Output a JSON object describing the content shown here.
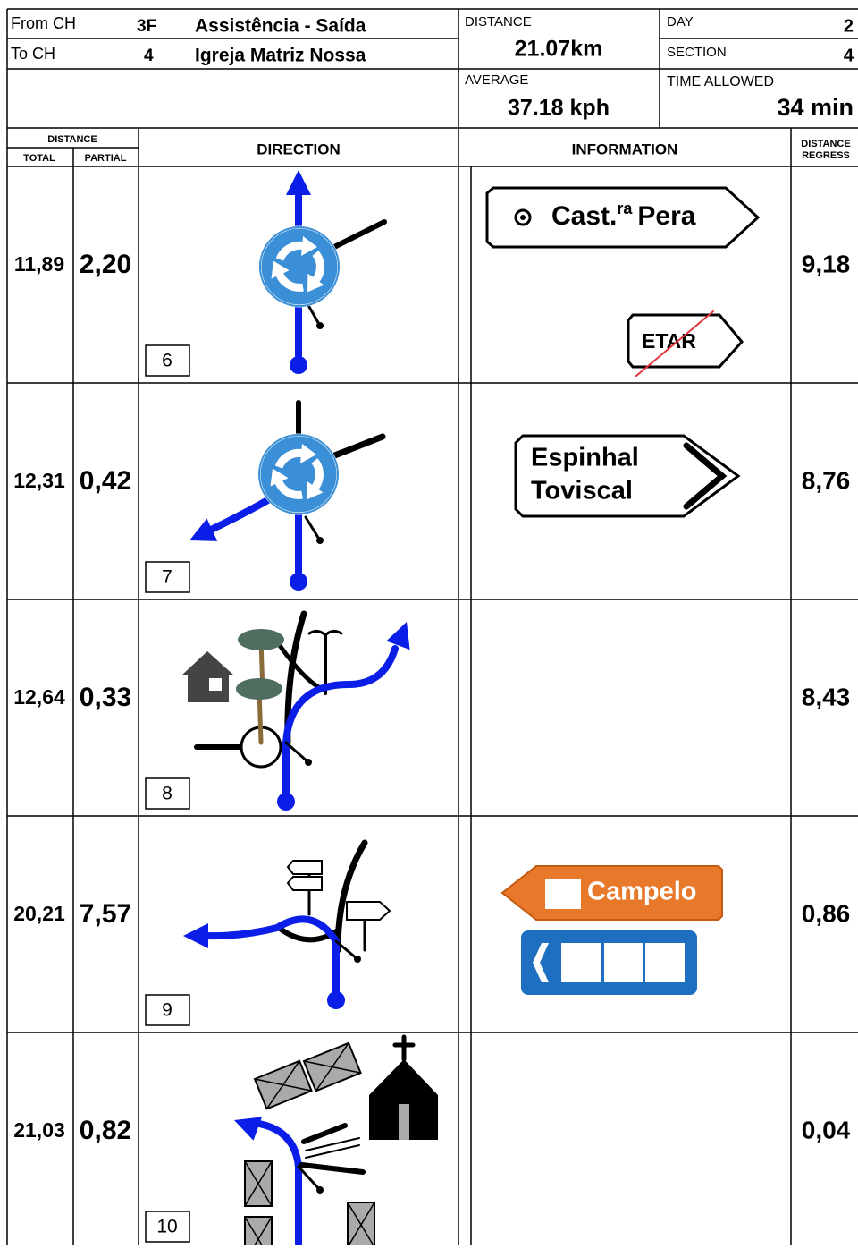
{
  "header": {
    "from_label": "From CH",
    "from_ch": "3F",
    "from_name": "Assistência - Saída",
    "to_label": "To CH",
    "to_ch": "4",
    "to_name": "Igreja Matriz Nossa",
    "distance_label": "DISTANCE",
    "distance": "21.07km",
    "average_label": "AVERAGE",
    "average": "37.18 kph",
    "day_label": "DAY",
    "day": "2",
    "section_label": "SECTION",
    "section": "4",
    "time_label": "TIME ALLOWED",
    "time": "34 min"
  },
  "columns": {
    "distance": "DISTANCE",
    "total": "TOTAL",
    "partial": "PARTIAL",
    "direction": "DIRECTION",
    "information": "INFORMATION",
    "regress": [
      "DISTANCE",
      "REGRESS"
    ]
  },
  "rows": [
    {
      "total": "11,89",
      "partial": "2,20",
      "number": "6",
      "regress": "9,18",
      "signs": [
        {
          "parts": [
            "Cast.",
            "ra",
            "Pera"
          ]
        },
        {
          "text": "ETAR"
        }
      ]
    },
    {
      "total": "12,31",
      "partial": "0,42",
      "number": "7",
      "regress": "8,76",
      "signs": [
        {
          "lines": [
            "Espinhal",
            "Toviscal"
          ]
        }
      ]
    },
    {
      "total": "12,64",
      "partial": "0,33",
      "number": "8",
      "regress": "8,43",
      "signs": []
    },
    {
      "total": "20,21",
      "partial": "7,57",
      "number": "9",
      "regress": "0,86",
      "signs": [
        {
          "text": "Campelo"
        }
      ]
    },
    {
      "total": "21,03",
      "partial": "0,82",
      "number": "10",
      "regress": "0,04",
      "signs": []
    }
  ]
}
